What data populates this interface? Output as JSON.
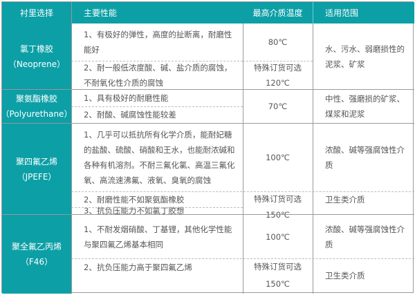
{
  "header": {
    "c1": "衬里选择",
    "c2": "主要性能",
    "c3": "最高介质温度",
    "c4": "适用范围"
  },
  "rows": [
    {
      "name": "氯丁橡胶",
      "code": "（Neoprene）",
      "props": [
        "1、有极好的弹性，高度的扯断离，耐磨性能好",
        "2、耐一般低浓度酸、碱、盐介质的腐蚀，不耐氧化性介质的腐蚀"
      ],
      "temps": [
        "80℃",
        "特殊订货可选",
        "120℃"
      ],
      "scope": [
        "水、污水、弱磨损性的泥浆、矿浆"
      ]
    },
    {
      "name": "聚氨酯橡胶",
      "code": "（Polyurethane）",
      "props": [
        "1、具有极好的耐磨性能",
        "2、耐酸、碱腐蚀性能较差"
      ],
      "temps": [
        "70℃"
      ],
      "scope": [
        "中性、强磨损的矿浆、煤浆和泥浆"
      ]
    },
    {
      "name": "聚四氟乙烯",
      "code": "（JPEFE）",
      "props": [
        "1、几乎可以抵抗所有化学介质，能耐妃糖的盐酸、硫酸、硝酸和王水，也能耐浓碱和各种有机溶剂。不耐三氟化氯、高温三氟化氧、高流速沸氟、液氧、臭氧的腐蚀",
        "2、耐磨性能不如聚氨酯橡胶",
        "3、抗负压能力不如氯丁胶想"
      ],
      "temps": [
        "100℃",
        "特殊订货可选",
        "150℃"
      ],
      "scope": [
        "浓酸、碱等强腐蚀性介质",
        "卫生类介质"
      ]
    },
    {
      "name": "聚全氟乙丙烯",
      "code": "（F46）",
      "props": [
        "1、不耐发烟硝酸、丁基锂，其他化学性能与聚四氟乙烯基本相同",
        "2、抗负压能力高于聚四氟乙烯"
      ],
      "temps": [
        "100℃",
        "特殊订货可选",
        "150℃"
      ],
      "scope": [
        "浓酸、碱等强腐蚀性介质",
        "卫生类介质"
      ]
    }
  ],
  "colors": {
    "accent": "#0c9fa6"
  }
}
